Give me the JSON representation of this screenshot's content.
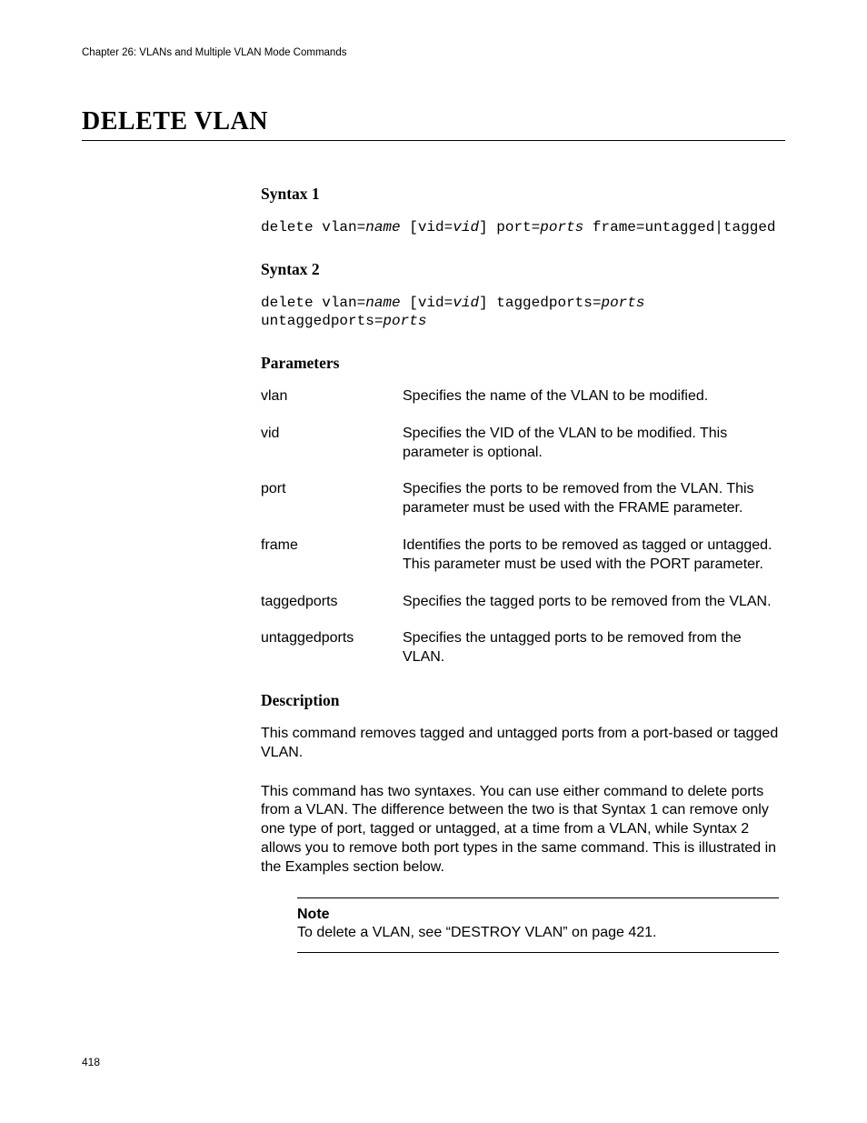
{
  "meta": {
    "running_header": "Chapter 26: VLANs and Multiple VLAN Mode Commands",
    "page_number": "418"
  },
  "title": "DELETE VLAN",
  "syntax1": {
    "heading": "Syntax 1",
    "segments": [
      {
        "t": "delete vlan=",
        "i": false
      },
      {
        "t": "name",
        "i": true
      },
      {
        "t": " [vid=",
        "i": false
      },
      {
        "t": "vid",
        "i": true
      },
      {
        "t": "] port=",
        "i": false
      },
      {
        "t": "ports",
        "i": true
      },
      {
        "t": " frame=untagged|tagged",
        "i": false
      }
    ]
  },
  "syntax2": {
    "heading": "Syntax 2",
    "segments": [
      {
        "t": "delete vlan=",
        "i": false
      },
      {
        "t": "name",
        "i": true
      },
      {
        "t": " [vid=",
        "i": false
      },
      {
        "t": "vid",
        "i": true
      },
      {
        "t": "] taggedports=",
        "i": false
      },
      {
        "t": "ports",
        "i": true
      },
      {
        "t": " untaggedports=",
        "i": false
      },
      {
        "t": "ports",
        "i": true
      }
    ]
  },
  "parameters": {
    "heading": "Parameters",
    "rows": [
      {
        "name": "vlan",
        "desc": "Specifies the name of the VLAN to be modified."
      },
      {
        "name": "vid",
        "desc": "Specifies the VID of the VLAN to be modified. This parameter is optional."
      },
      {
        "name": "port",
        "desc": "Specifies the ports to be removed from the VLAN. This parameter must be used with the FRAME parameter."
      },
      {
        "name": "frame",
        "desc": "Identifies the ports to be removed as tagged or untagged. This parameter must be used with the PORT parameter."
      },
      {
        "name": "taggedports",
        "desc": "Specifies the tagged ports to be removed from the VLAN."
      },
      {
        "name": "untaggedports",
        "desc": "Specifies the untagged ports to be removed from the VLAN."
      }
    ]
  },
  "description": {
    "heading": "Description",
    "p1": "This command removes tagged and untagged ports from a port-based or tagged VLAN.",
    "p2": "This command has two syntaxes. You can use either command to delete ports from a VLAN. The difference between the two is that Syntax 1 can remove only one type of port, tagged or untagged, at a time from a VLAN, while Syntax 2 allows you to remove both port types in the same command. This is illustrated in the Examples section below."
  },
  "note": {
    "label": "Note",
    "text": "To delete a VLAN, see “DESTROY VLAN” on page 421."
  }
}
